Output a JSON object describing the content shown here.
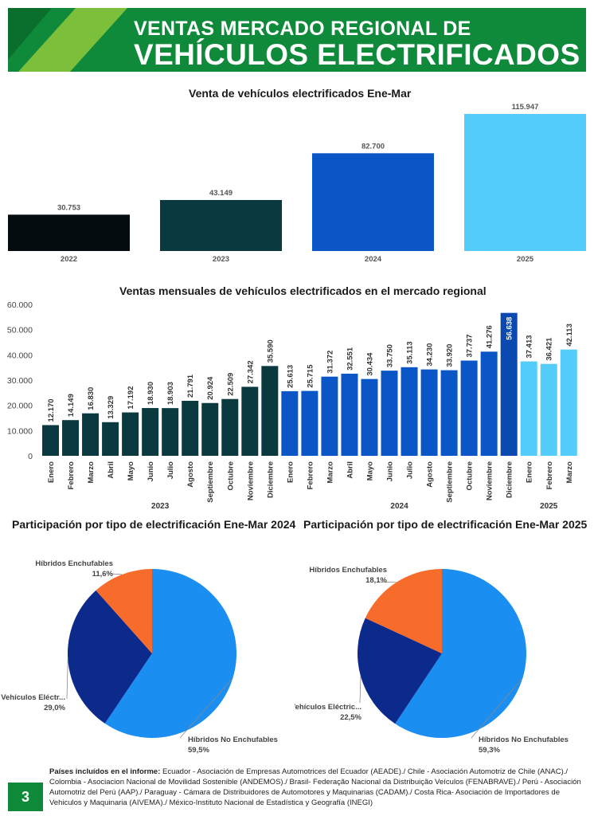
{
  "header": {
    "title_line1": "VENTAS MERCADO REGIONAL DE",
    "title_line2": "VEHÍCULOS ELECTRIFICADOS"
  },
  "colors": {
    "banner_green": "#0e8a3a",
    "banner_lime": "#7bbf3b",
    "y2022": "#050c10",
    "y2023": "#0b3940",
    "y2024": "#0b56c6",
    "y2025": "#55cdfa",
    "pie_blue": "#1b8ef2",
    "pie_navy": "#0c2a8c",
    "pie_orange": "#f76b2b"
  },
  "chart_data": [
    {
      "type": "bar",
      "title": "Venta de vehículos electrificados Ene-Mar",
      "categories": [
        "2022",
        "2023",
        "2024",
        "2025"
      ],
      "values": [
        30753,
        43149,
        82700,
        115947
      ],
      "value_labels": [
        "30.753",
        "43.149",
        "82.700",
        "115.947"
      ],
      "ylim": [
        0,
        115947
      ]
    },
    {
      "type": "bar",
      "title": "Ventas mensuales de vehículos electrificados en el mercado regional",
      "ylim": [
        0,
        60000
      ],
      "yticks": [
        0,
        10000,
        20000,
        30000,
        40000,
        50000,
        60000
      ],
      "ytick_labels": [
        "0",
        "10.000",
        "20.000",
        "30.000",
        "40.000",
        "50.000",
        "60.000"
      ],
      "groups": [
        {
          "label": "2023",
          "months": [
            "Enero",
            "Febrero",
            "Marzo",
            "Abril",
            "Mayo",
            "Junio",
            "Julio",
            "Agosto",
            "Septiembre",
            "Octubre",
            "Noviembre",
            "Diciembre"
          ],
          "values": [
            12170,
            14149,
            16830,
            13329,
            17192,
            18930,
            18903,
            21791,
            20924,
            22509,
            27342,
            35590
          ],
          "value_labels": [
            "12.170",
            "14.149",
            "16.830",
            "13.329",
            "17.192",
            "18.930",
            "18.903",
            "21.791",
            "20.924",
            "22.509",
            "27.342",
            "35.590"
          ]
        },
        {
          "label": "2024",
          "months": [
            "Enero",
            "Febrero",
            "Marzo",
            "Abril",
            "Mayo",
            "Junio",
            "Julio",
            "Agosto",
            "Septiembre",
            "Octubre",
            "Noviembre",
            "Diciembre"
          ],
          "values": [
            25613,
            25715,
            31372,
            32551,
            30434,
            33750,
            35113,
            34230,
            33920,
            37737,
            41276,
            56638
          ],
          "value_labels": [
            "25.613",
            "25.715",
            "31.372",
            "32.551",
            "30.434",
            "33.750",
            "35.113",
            "34.230",
            "33.920",
            "37.737",
            "41.276",
            "56.638"
          ]
        },
        {
          "label": "2025",
          "months": [
            "Enero",
            "Febrero",
            "Marzo"
          ],
          "values": [
            37413,
            36421,
            42113
          ],
          "value_labels": [
            "37.413",
            "36.421",
            "42.113"
          ]
        }
      ]
    },
    {
      "type": "pie",
      "title": "Participación por tipo de electrificación Ene-Mar 2024",
      "slices": [
        {
          "name": "Híbridos No Enchufables",
          "value": 59.5,
          "label": "59,5%"
        },
        {
          "name": "Vehículos Eléctr...",
          "value": 29.0,
          "label": "29,0%"
        },
        {
          "name": "Híbridos Enchufables",
          "value": 11.6,
          "label": "11,6%"
        }
      ]
    },
    {
      "type": "pie",
      "title": "Participación por tipo de electrificación Ene-Mar 2025",
      "slices": [
        {
          "name": "Híbridos No Enchufables",
          "value": 59.3,
          "label": "59,3%"
        },
        {
          "name": "Vehículos Eléctric...",
          "value": 22.5,
          "label": "22,5%"
        },
        {
          "name": "Híbridos Enchufables",
          "value": 18.1,
          "label": "18,1%"
        }
      ]
    }
  ],
  "footer": {
    "label": "Países incluídos en el informe:",
    "text": " Ecuador - Asociación de Empresas Automotrices del Ecuador (AEADE)./ Chile - Asociación Automotriz de Chile (ANAC)./ Colombia - Asociacion Nacional de Movilidad Sostenible (ANDEMOS)./ Brasil- Federação Nacional da Distribuição Veículos (FENABRAVE)./ Perú - Asociación Automotriz del Perú (AAP)./ Paraguay - Cámara de Distribuidores de Automotores y Maquinarias (CADAM)./ Costa Rica- Asociación de Importadores de Vehiculos y Maquinaria (AIVEMA)./ México-Instituto Nacional de Estadística y Geografía (INEGI)",
    "page_number": "3"
  }
}
